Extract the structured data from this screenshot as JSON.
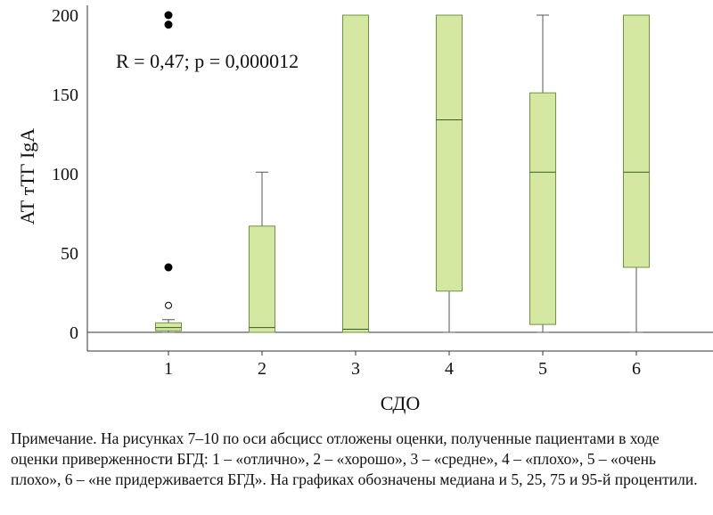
{
  "chart_data": {
    "type": "boxplot",
    "title": "",
    "xlabel": "СДО",
    "ylabel": "АТ тТГ IgA",
    "categories": [
      "1",
      "2",
      "3",
      "4",
      "5",
      "6"
    ],
    "ylim": [
      -12,
      205
    ],
    "yticks": [
      0,
      50,
      100,
      150,
      200
    ],
    "grid": false,
    "legend": "none",
    "box_fill": "#d4e8a2",
    "box_stroke": "#6f9440",
    "boxes": [
      {
        "category": "1",
        "p5": 0,
        "p25": 1,
        "median": 3,
        "p75": 6,
        "p95": 8
      },
      {
        "category": "2",
        "p5": 0,
        "p25": 0,
        "median": 3,
        "p75": 67,
        "p95": 101
      },
      {
        "category": "3",
        "p5": 0,
        "p25": 0,
        "median": 2,
        "p75": 200,
        "p95": 200
      },
      {
        "category": "4",
        "p5": 0,
        "p25": 26,
        "median": 134,
        "p75": 200,
        "p95": 200
      },
      {
        "category": "5",
        "p5": 0,
        "p25": 5,
        "median": 101,
        "p75": 151,
        "p95": 200
      },
      {
        "category": "6",
        "p5": 0,
        "p25": 41,
        "median": 101,
        "p75": 200,
        "p95": 200
      }
    ],
    "outliers": [
      {
        "category": "1",
        "value": 200,
        "style": "filled"
      },
      {
        "category": "1",
        "value": 194,
        "style": "filled"
      },
      {
        "category": "1",
        "value": 41,
        "style": "filled"
      },
      {
        "category": "1",
        "value": 17,
        "style": "open"
      }
    ],
    "annotation": "R = 0,47; p = 0,000012"
  },
  "caption": "Примечание. На рисунках 7–10 по оси абсцисс отложены оценки, полученные пациентами в ходе оценки приверженности БГД: 1 – «отлично», 2 – «хорошо», 3 – «средне», 4 – «плохо», 5 – «очень плохо», 6 – «не придерживается БГД». На графиках обозначены медиана и 5, 25, 75 и 95-й процентили."
}
